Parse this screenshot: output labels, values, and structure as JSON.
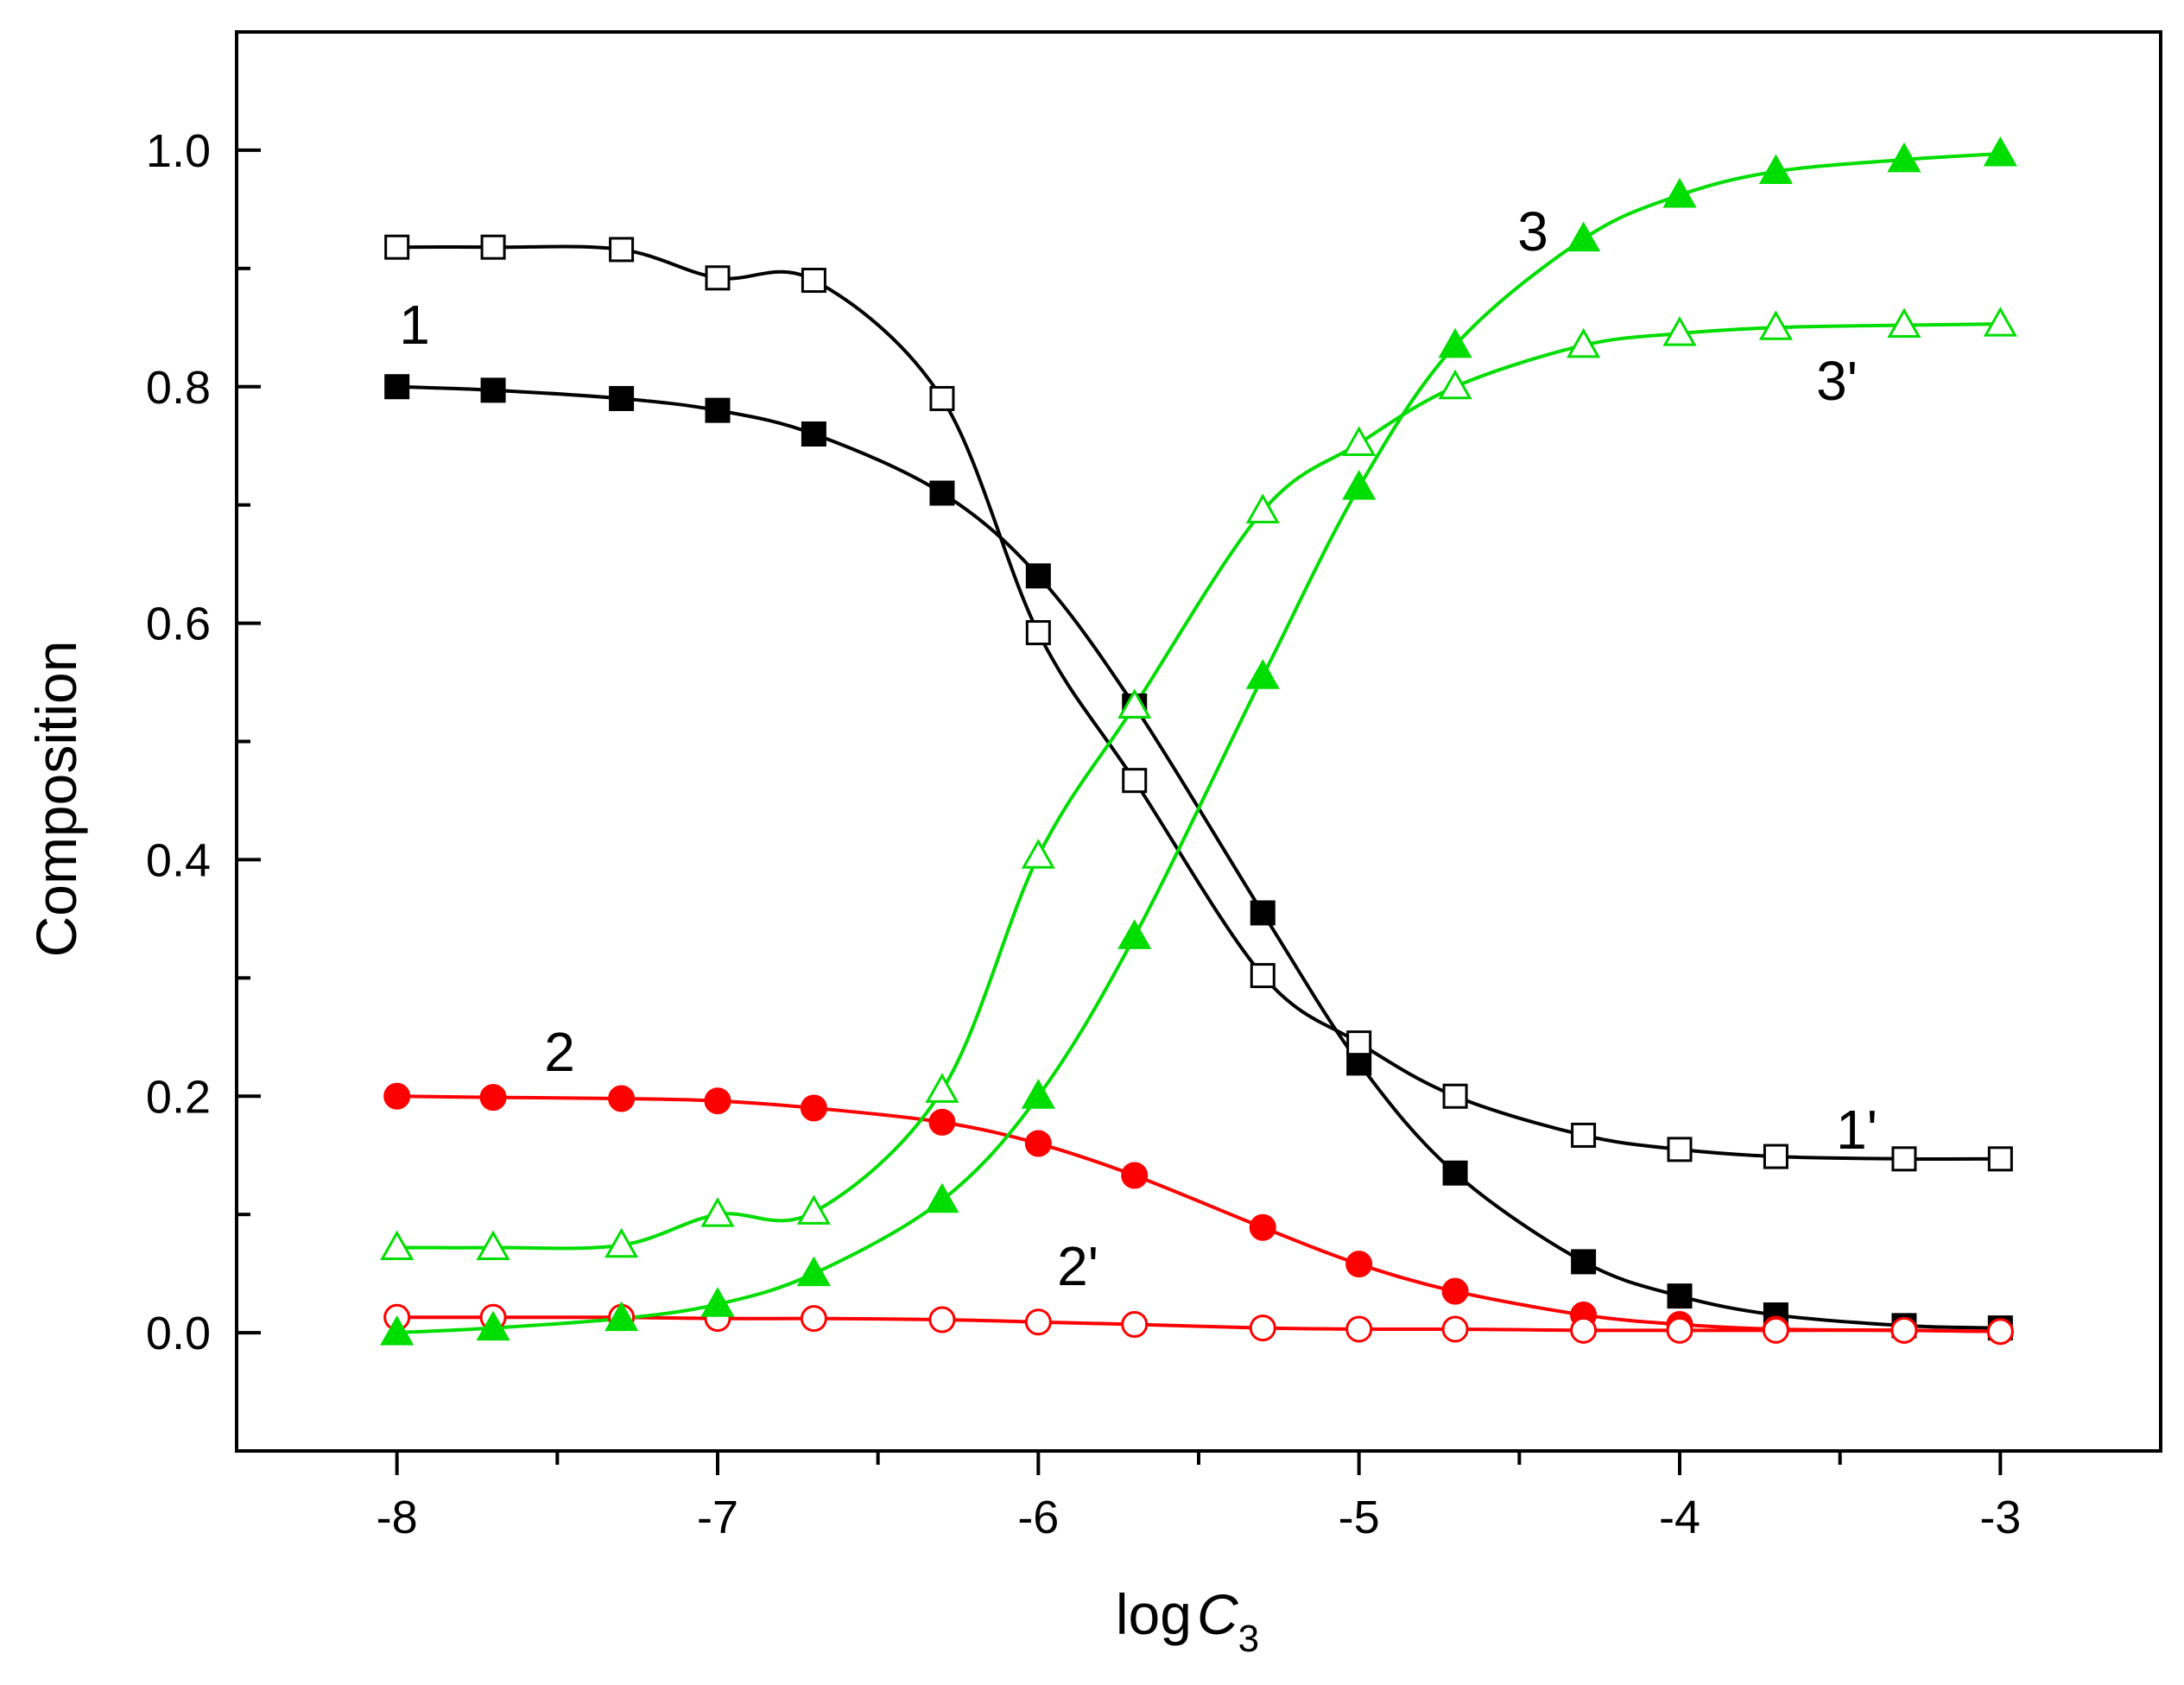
{
  "chart_data": {
    "type": "line",
    "title": "",
    "xlabel": {
      "prefix": "log",
      "var": "C",
      "sub": "3"
    },
    "ylabel": "Composition",
    "xlim": [
      -8.5,
      -2.5
    ],
    "ylim": [
      -0.1,
      1.1
    ],
    "x_ticks": [
      -8,
      -7,
      -6,
      -5,
      -4,
      -3
    ],
    "x_tick_labels": [
      "-8",
      "-7",
      "-6",
      "-5",
      "-4",
      "-3"
    ],
    "y_ticks": [
      0.0,
      0.2,
      0.4,
      0.6,
      0.8,
      1.0
    ],
    "y_tick_labels": [
      "0.0",
      "0.2",
      "0.4",
      "0.6",
      "0.8",
      "1.0"
    ],
    "x": [
      -8,
      -7.7,
      -7.3,
      -7,
      -6.7,
      -6.3,
      -6,
      -5.7,
      -5.3,
      -5,
      -4.7,
      -4.3,
      -4,
      -3.7,
      -3.3,
      -3
    ],
    "series": [
      {
        "name": "1",
        "label": "1",
        "color": "#000000",
        "marker": "square",
        "filled": true,
        "values": [
          0.8,
          0.797,
          0.79,
          0.78,
          0.76,
          0.71,
          0.64,
          0.53,
          0.355,
          0.228,
          0.135,
          0.06,
          0.031,
          0.015,
          0.006,
          0.004
        ]
      },
      {
        "name": "1'",
        "label": "1'",
        "color": "#000000",
        "marker": "square",
        "filled": false,
        "values": [
          0.918,
          0.918,
          0.916,
          0.892,
          0.89,
          0.79,
          0.592,
          0.467,
          0.302,
          0.245,
          0.2,
          0.167,
          0.155,
          0.149,
          0.147,
          0.147
        ]
      },
      {
        "name": "2",
        "label": "2",
        "color": "#ff0000",
        "marker": "circle",
        "filled": true,
        "values": [
          0.2,
          0.199,
          0.198,
          0.196,
          0.19,
          0.178,
          0.16,
          0.133,
          0.089,
          0.058,
          0.035,
          0.015,
          0.007,
          0.003,
          0.002,
          0.001
        ]
      },
      {
        "name": "2'",
        "label": "2'",
        "color": "#ff0000",
        "marker": "circle",
        "filled": false,
        "values": [
          0.013,
          0.013,
          0.013,
          0.012,
          0.012,
          0.011,
          0.009,
          0.007,
          0.004,
          0.003,
          0.003,
          0.002,
          0.002,
          0.002,
          0.002,
          0.001
        ]
      },
      {
        "name": "3",
        "label": "3",
        "color": "#00dd00",
        "marker": "triangle",
        "filled": true,
        "values": [
          0.0,
          0.004,
          0.012,
          0.024,
          0.05,
          0.112,
          0.2,
          0.335,
          0.555,
          0.715,
          0.835,
          0.925,
          0.962,
          0.982,
          0.992,
          0.997
        ]
      },
      {
        "name": "3'",
        "label": "3'",
        "color": "#00dd00",
        "marker": "triangle",
        "filled": false,
        "values": [
          0.072,
          0.072,
          0.074,
          0.1,
          0.102,
          0.205,
          0.403,
          0.53,
          0.695,
          0.752,
          0.8,
          0.835,
          0.845,
          0.85,
          0.852,
          0.853
        ]
      }
    ],
    "annotations": [
      {
        "text": "1",
        "series": "1"
      },
      {
        "text": "1'",
        "series": "1'"
      },
      {
        "text": "2",
        "series": "2"
      },
      {
        "text": "2'",
        "series": "2'"
      },
      {
        "text": "3",
        "series": "3"
      },
      {
        "text": "3'",
        "series": "3'"
      }
    ]
  }
}
